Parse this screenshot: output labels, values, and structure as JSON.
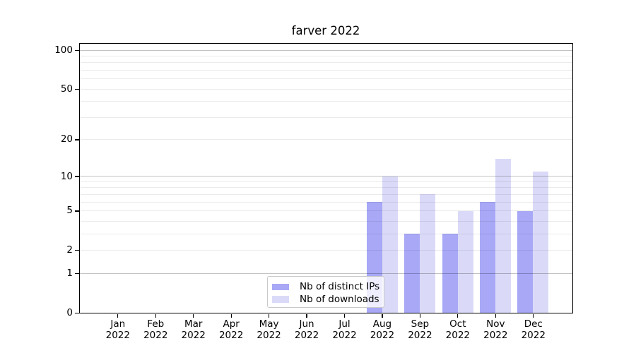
{
  "chart_data": {
    "type": "bar",
    "title": "farver 2022",
    "categories": [
      "Jan 2022",
      "Feb 2022",
      "Mar 2022",
      "Apr 2022",
      "May 2022",
      "Jun 2022",
      "Jul 2022",
      "Aug 2022",
      "Sep 2022",
      "Oct 2022",
      "Nov 2022",
      "Dec 2022"
    ],
    "series": [
      {
        "name": "Nb of distinct IPs",
        "color": "#a8a8f7",
        "values": [
          0,
          0,
          0,
          0,
          0,
          0,
          0,
          6,
          3,
          3,
          6,
          5
        ]
      },
      {
        "name": "Nb of downloads",
        "color": "#dadaf8",
        "values": [
          0,
          0,
          0,
          0,
          0,
          0,
          0,
          10,
          7,
          5,
          14,
          11
        ]
      }
    ],
    "y_scale": "log1p",
    "ylim": [
      0,
      112
    ],
    "y_ticks": [
      {
        "value": 0,
        "label": "0"
      },
      {
        "value": 1,
        "label": "1"
      },
      {
        "value": 2,
        "label": "2"
      },
      {
        "value": 5,
        "label": "5"
      },
      {
        "value": 10,
        "label": "10"
      },
      {
        "value": 20,
        "label": "20"
      },
      {
        "value": 50,
        "label": "50"
      },
      {
        "value": 100,
        "label": "100"
      }
    ],
    "y_major_grid": [
      1,
      10,
      100
    ],
    "y_minor_grid": [
      2,
      3,
      4,
      5,
      6,
      7,
      8,
      9,
      20,
      30,
      40,
      50,
      60,
      70,
      80,
      90
    ],
    "xlabel": "",
    "ylabel": "",
    "grid": true,
    "legend": {
      "position": "lower center",
      "entries": [
        "Nb of distinct IPs",
        "Nb of downloads"
      ]
    },
    "colors": {
      "major_grid": "rgba(0,0,0,0.24)",
      "minor_grid": "rgba(0,0,0,0.08)",
      "axis": "#000000",
      "background": "#ffffff"
    }
  }
}
